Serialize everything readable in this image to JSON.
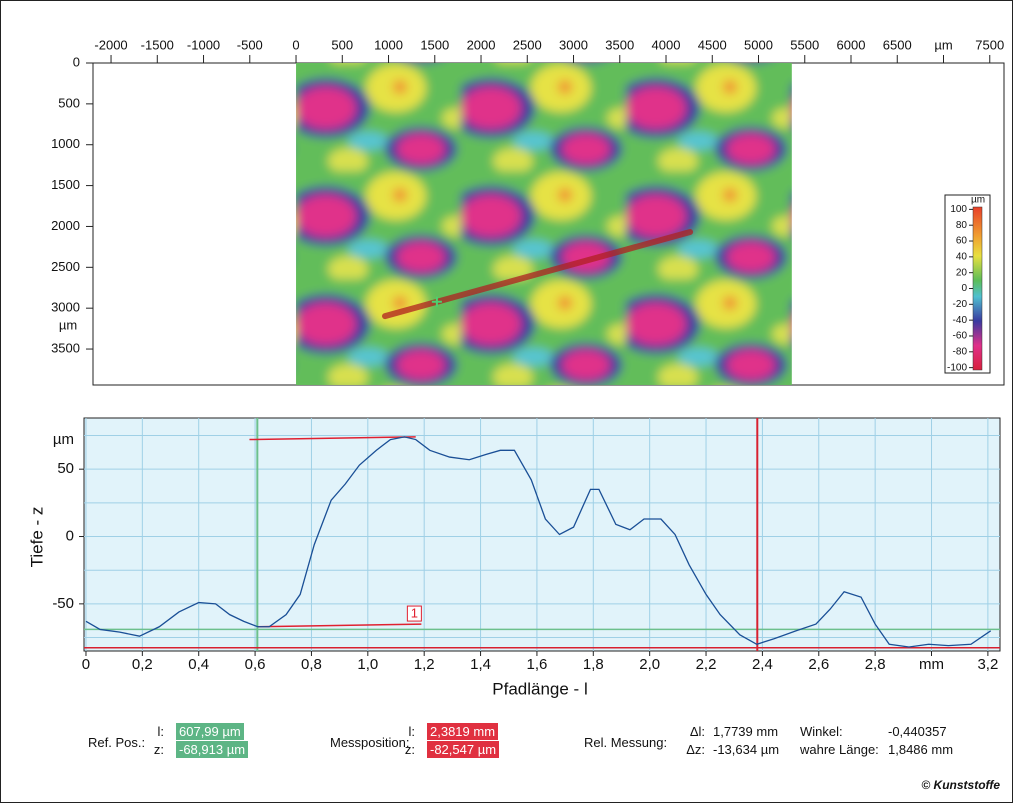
{
  "chart_data": [
    {
      "type": "heatmap",
      "xlim": [
        -2195,
        7654
      ],
      "ylim": [
        0,
        3940
      ],
      "xticks": [
        -2000,
        -1500,
        -1000,
        -500,
        0,
        500,
        1000,
        1500,
        2000,
        2500,
        3000,
        3500,
        4000,
        4500,
        5000,
        5500,
        6000,
        6500,
        {
          "value": 7000,
          "label": "µm"
        },
        7500
      ],
      "yticks": [
        0,
        500,
        1000,
        1500,
        2000,
        2500,
        3000,
        3500
      ],
      "y_unit": "µm",
      "image_extent": {
        "x": [
          0,
          5360
        ],
        "y": [
          0,
          3940
        ]
      },
      "profile_path": {
        "x": [
          962,
          4260
        ],
        "y": [
          3097,
          2068
        ]
      },
      "colorbar": {
        "label": "µm",
        "lim": [
          -103,
          103
        ],
        "ticks": [
          100,
          80,
          60,
          40,
          20,
          0,
          -20,
          -40,
          -60,
          -80,
          -100
        ]
      }
    },
    {
      "type": "line",
      "xlim": [
        -0.007,
        3.243
      ],
      "ylim": [
        -85,
        88
      ],
      "xticks": [
        0,
        {
          "value": 0.2,
          "label": "0,2"
        },
        {
          "value": 0.4,
          "label": "0,4"
        },
        {
          "value": 0.6,
          "label": "0,6"
        },
        {
          "value": 0.8,
          "label": "0,8"
        },
        {
          "value": 1.0,
          "label": "1,0"
        },
        {
          "value": 1.2,
          "label": "1,2"
        },
        {
          "value": 1.4,
          "label": "1,4"
        },
        {
          "value": 1.6,
          "label": "1,6"
        },
        {
          "value": 1.8,
          "label": "1,8"
        },
        {
          "value": 2.0,
          "label": "2,0"
        },
        {
          "value": 2.2,
          "label": "2,2"
        },
        {
          "value": 2.4,
          "label": "2,4"
        },
        {
          "value": 2.6,
          "label": "2,6"
        },
        {
          "value": 2.8,
          "label": "2,8"
        },
        {
          "value": 3.0,
          "label": "mm"
        },
        {
          "value": 3.2,
          "label": "3,2"
        }
      ],
      "yticks": [
        50,
        0,
        -50
      ],
      "ygrid": [
        75,
        50,
        25,
        0,
        -25,
        -50,
        -75
      ],
      "y_unit": "µm",
      "grid": true,
      "xlabel": "Pfadlänge - l",
      "ylabel": "Tiefe - z",
      "series": [
        {
          "color": "#1a4f96",
          "x": [
            0,
            0.05,
            0.12,
            0.19,
            0.26,
            0.33,
            0.4,
            0.46,
            0.51,
            0.56,
            0.61,
            0.65,
            0.71,
            0.76,
            0.81,
            0.87,
            0.92,
            0.97,
            1.03,
            1.08,
            1.13,
            1.17,
            1.22,
            1.29,
            1.36,
            1.42,
            1.47,
            1.52,
            1.58,
            1.63,
            1.68,
            1.73,
            1.79,
            1.82,
            1.88,
            1.93,
            1.98,
            2.04,
            2.09,
            2.14,
            2.2,
            2.25,
            2.32,
            2.38,
            2.44,
            2.52,
            2.59,
            2.64,
            2.69,
            2.75,
            2.8,
            2.85,
            2.92,
            2.99,
            3.06,
            3.14,
            3.21
          ],
          "values": [
            -63,
            -69,
            -71,
            -74,
            -67,
            -56,
            -49,
            -50,
            -58,
            -63,
            -67,
            -67,
            -58,
            -43,
            -6,
            27,
            39,
            53,
            64,
            72,
            74,
            72,
            64,
            59,
            57,
            61,
            64,
            64,
            42,
            13,
            1.5,
            7,
            35,
            35,
            9,
            5,
            13,
            13,
            1.5,
            -21,
            -43,
            -58,
            -73,
            -80,
            -76,
            -70,
            -65,
            -54,
            -41,
            -45,
            -65,
            -80,
            -82,
            -80,
            -81,
            -80,
            -70
          ]
        }
      ],
      "reference_lines": [
        {
          "axis": "x",
          "value": 0.60799,
          "color": "#6cc08c"
        },
        {
          "axis": "y",
          "value": -68.913,
          "color": "#6cc08c"
        },
        {
          "axis": "x",
          "value": 2.3819,
          "color": "#d82030"
        },
        {
          "axis": "y",
          "value": -82.547,
          "color": "#d82030"
        }
      ],
      "markers": [
        {
          "x": [
            0.58,
            1.17
          ],
          "y": [
            72,
            74
          ]
        },
        {
          "x": [
            0.61,
            1.19
          ],
          "y": [
            -67,
            -65
          ],
          "label": "1"
        }
      ]
    }
  ],
  "readouts": [
    {
      "label": "Ref. Pos.:",
      "rows": [
        [
          "l:",
          "607,99 µm"
        ],
        [
          "z:",
          "-68,913 µm"
        ]
      ]
    },
    {
      "label": "Messposition:",
      "rows": [
        [
          "l:",
          "2,3819 mm"
        ],
        [
          "z:",
          "-82,547 µm"
        ]
      ]
    },
    {
      "label": "Rel. Messung:",
      "rows": [
        [
          "Δl:",
          "1,7739 mm"
        ],
        [
          "Δz:",
          "-13,634 µm"
        ]
      ]
    },
    {
      "rows": [
        [
          "Winkel:",
          "-0,440357"
        ],
        [
          "wahre Länge:",
          "1,8486 mm"
        ]
      ]
    }
  ],
  "credit": "© Kunststoffe"
}
